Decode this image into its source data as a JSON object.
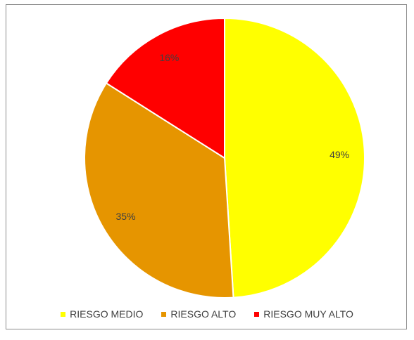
{
  "chart_data": {
    "type": "pie",
    "categories": [
      "RIESGO MEDIO",
      "RIESGO ALTO",
      "RIESGO MUY ALTO"
    ],
    "values": [
      49,
      35,
      16
    ],
    "labels": [
      "49%",
      "35%",
      "16%"
    ],
    "colors": [
      "#ffff00",
      "#e69500",
      "#ff0000"
    ],
    "legend_position": "bottom"
  }
}
